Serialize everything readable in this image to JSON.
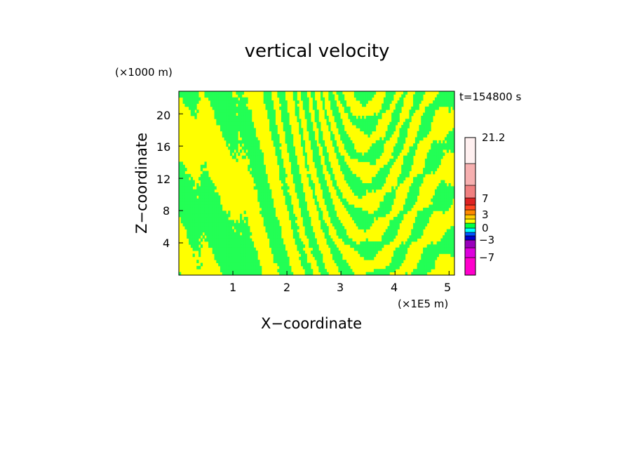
{
  "chart_data": {
    "type": "heatmap",
    "title": "vertical velocity",
    "xlabel": "X−coordinate",
    "ylabel": "Z−coordinate",
    "x_unit": "(×1E5 m)",
    "y_unit": "(×1000 m)",
    "time_label": "t=154800 s",
    "xlim": [
      0,
      5.1
    ],
    "ylim": [
      0,
      22.8
    ],
    "x_ticks": [
      "1",
      "2",
      "3",
      "4",
      "5"
    ],
    "y_ticks": [
      "4",
      "8",
      "12",
      "16",
      "20"
    ],
    "field_colors": {
      "positive": "#ffff00",
      "negative": "#22ff55"
    },
    "colorbar": {
      "tick_labels": [
        "21.2",
        "7",
        "3",
        "0",
        "−3",
        "−7"
      ],
      "tick_values": [
        21.2,
        7,
        3,
        0,
        -3,
        -7
      ],
      "levels": [
        {
          "color": "#ff00cc"
        },
        {
          "color": "#dd00dd"
        },
        {
          "color": "#9900bb"
        },
        {
          "color": "#0000cc"
        },
        {
          "color": "#0055ff"
        },
        {
          "color": "#00ffff"
        },
        {
          "color": "#00ff44"
        },
        {
          "color": "#ffff00"
        },
        {
          "color": "#ffcc00"
        },
        {
          "color": "#ff8800"
        },
        {
          "color": "#ff4422"
        },
        {
          "color": "#dd2222"
        },
        {
          "color": "#f08080"
        },
        {
          "color": "#f7b0b0"
        },
        {
          "color": "#fbd4d4"
        },
        {
          "color": "#fff0f0"
        }
      ]
    }
  }
}
